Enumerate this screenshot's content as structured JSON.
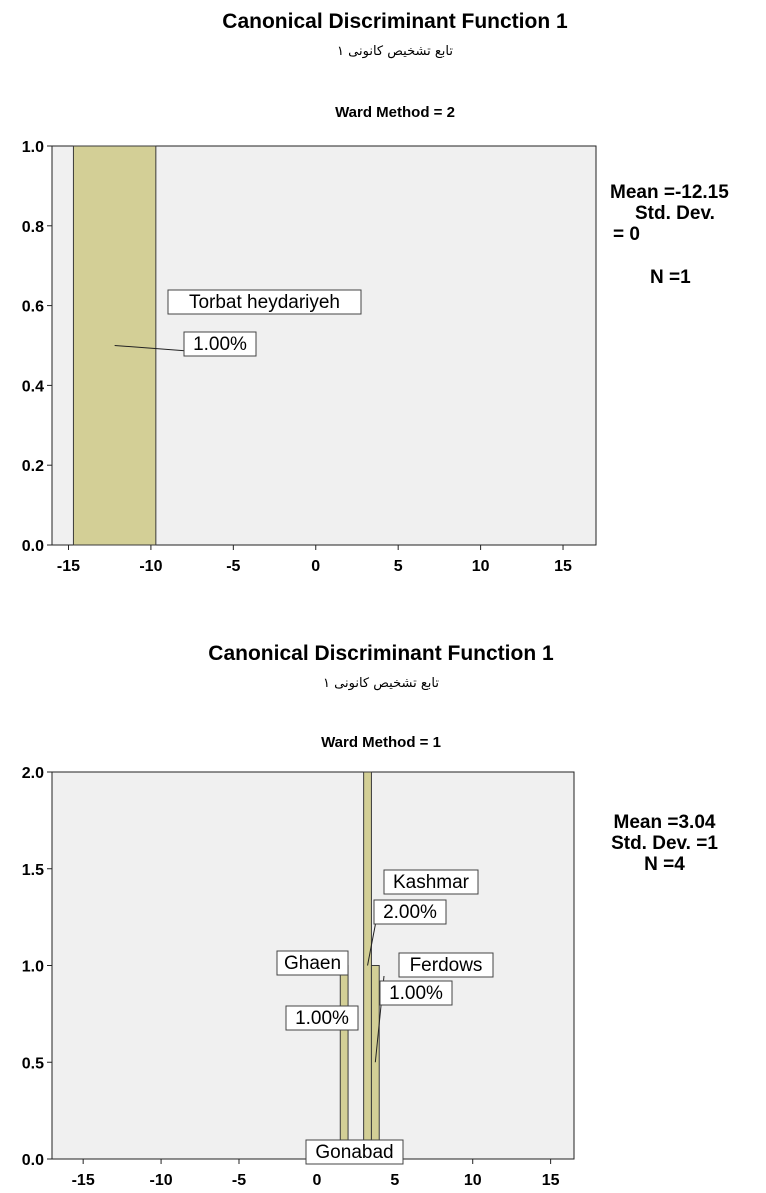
{
  "chart_data": [
    {
      "type": "bar",
      "title": "Canonical Discriminant Function 1",
      "subtitle": "تابع تشخیص کانونی ۱",
      "group_label": "Ward Method = 2",
      "xlim": [
        -16,
        17
      ],
      "ylim": [
        0,
        1.0
      ],
      "x_ticks": [
        "-15",
        "-10",
        "-5",
        "0",
        "5",
        "10",
        "15"
      ],
      "y_ticks": [
        "0.0",
        "0.2",
        "0.4",
        "0.6",
        "0.8",
        "1.0"
      ],
      "bins": [
        {
          "x0": -14.7,
          "x1": -9.7,
          "count": 1.0
        }
      ],
      "annotations": [
        {
          "name": "Torbat heydariyeh",
          "percent": "1.00%"
        }
      ],
      "stats": {
        "mean": "Mean =-12.15",
        "sd_a": "Std. Dev.",
        "sd_b": "= 0",
        "n": "N =1"
      },
      "colors": {
        "bar": "#d3cf96",
        "plot_bg": "#f0f0f0",
        "edge": "#3a3a3a"
      }
    },
    {
      "type": "bar",
      "title": "Canonical Discriminant Function 1",
      "subtitle": "تابع تشخیص کانونی ۱",
      "group_label": "Ward Method = 1",
      "xlim": [
        -17,
        16.5
      ],
      "ylim": [
        0,
        2.0
      ],
      "x_ticks": [
        "-15",
        "-10",
        "-5",
        "0",
        "5",
        "10",
        "15"
      ],
      "y_ticks": [
        "0.0",
        "0.5",
        "1.0",
        "1.5",
        "2.0"
      ],
      "bins": [
        {
          "x0": 1.5,
          "x1": 2.0,
          "count": 1.0
        },
        {
          "x0": 3.0,
          "x1": 3.5,
          "count": 2.0
        },
        {
          "x0": 3.5,
          "x1": 4.0,
          "count": 1.0
        }
      ],
      "annotations": [
        {
          "name": "Kashmar",
          "percent": "2.00%"
        },
        {
          "name": "Ghaen",
          "percent": "1.00%"
        },
        {
          "name": "Ferdows",
          "percent": "1.00%"
        },
        {
          "name": "Gonabad",
          "percent": ""
        }
      ],
      "stats": {
        "mean": "Mean =3.04",
        "sd": "Std. Dev. =1",
        "n": "N =4"
      },
      "colors": {
        "bar": "#d3cf96",
        "plot_bg": "#f0f0f0",
        "edge": "#3a3a3a"
      }
    }
  ]
}
